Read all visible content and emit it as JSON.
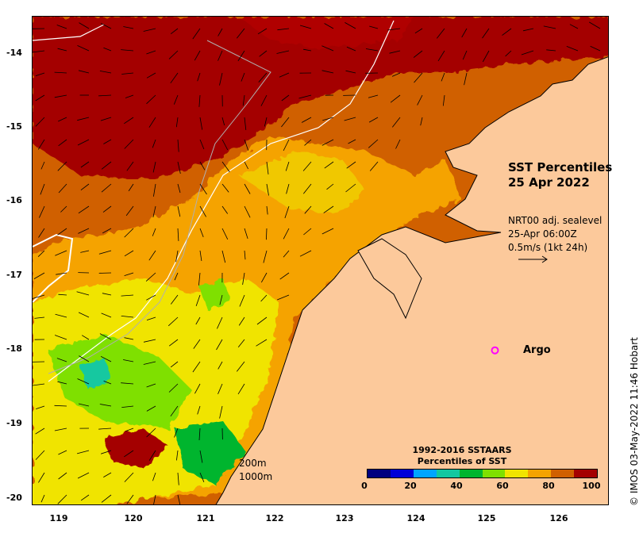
{
  "map": {
    "title_line1": "SST Percentiles",
    "title_line2": "25 Apr 2022",
    "vector_info": {
      "line1": "NRT00 adj. sealevel",
      "line2": "25-Apr 06:00Z",
      "line3": "0.5m/s (1kt 24h)"
    },
    "argo_label": "Argo",
    "contour_labels": [
      "200m",
      "1000m"
    ],
    "credit": "© IMOS 03-May-2022 11:46 Hobart",
    "lat_ticks": [
      "-14",
      "-15",
      "-16",
      "-17",
      "-18",
      "-19",
      "-20"
    ],
    "lon_ticks": [
      "119",
      "120",
      "121",
      "122",
      "123",
      "124",
      "125",
      "126"
    ],
    "lat_range": [
      -20.1,
      -13.5
    ],
    "lon_range": [
      118.6,
      126.9
    ],
    "argo_position": {
      "lon": 125.25,
      "lat": -18.0
    },
    "land_color": "#fcc99b",
    "argo_color": "#ff00ff"
  },
  "legend": {
    "title_line1": "1992-2016 SSTAARS",
    "title_line2": "Percentiles of SST",
    "tick_labels": [
      "0",
      "20",
      "40",
      "60",
      "80",
      "100"
    ],
    "colors": [
      "#00007f",
      "#0000d8",
      "#00a5ff",
      "#12c8a0",
      "#00b52e",
      "#7fe000",
      "#f0e400",
      "#f5a300",
      "#d06000",
      "#a40000"
    ]
  }
}
